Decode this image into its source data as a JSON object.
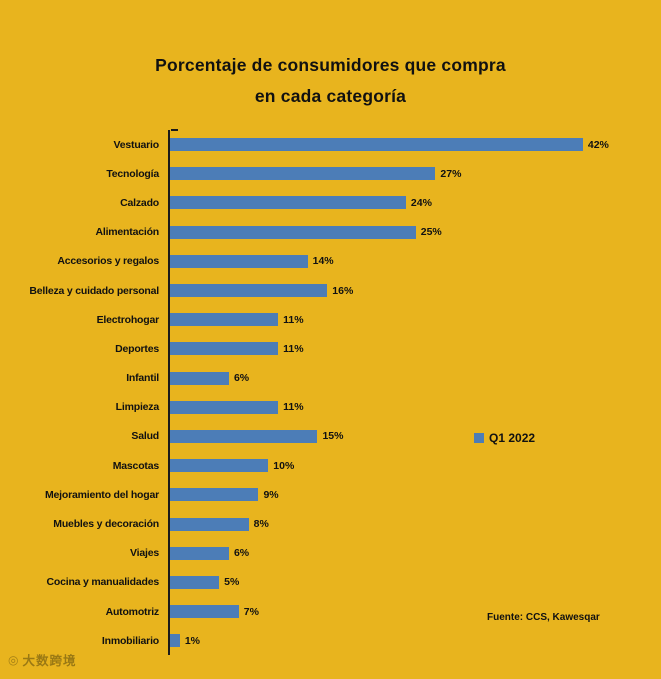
{
  "page": {
    "background_color": "#E8B41E"
  },
  "chart_data": {
    "type": "bar",
    "orientation": "horizontal",
    "title": "Porcentaje de consumidores que compra en cada categoría",
    "title_lines": {
      "line1": "Porcentaje de consumidores que compra",
      "line2": "en cada categoría"
    },
    "categories": [
      "Vestuario",
      "Tecnología",
      "Calzado",
      "Alimentación",
      "Accesorios y regalos",
      "Belleza y cuidado personal",
      "Electrohogar",
      "Deportes",
      "Infantil",
      "Limpieza",
      "Salud",
      "Mascotas",
      "Mejoramiento del hogar",
      "Muebles y decoración",
      "Viajes",
      "Cocina y manualidades",
      "Automotriz",
      "Inmobiliario"
    ],
    "values": [
      42,
      27,
      24,
      25,
      14,
      16,
      11,
      11,
      6,
      11,
      15,
      10,
      9,
      8,
      6,
      5,
      7,
      1
    ],
    "value_labels": [
      "42%",
      "27%",
      "24%",
      "25%",
      "14%",
      "16%",
      "11%",
      "11%",
      "6%",
      "11%",
      "15%",
      "10%",
      "9%",
      "8%",
      "6%",
      "5%",
      "7%",
      "1%"
    ],
    "bar_color": "#4C7DB7",
    "xlim": [
      0,
      45
    ],
    "grid": false,
    "legend": {
      "label": "Q1 2022",
      "position": "right-middle",
      "swatch_color": "#4C7DB7"
    },
    "source": "Fuente: CCS, Kawesqar"
  },
  "watermark": {
    "icon": "logo-100",
    "text": "大数跨境"
  }
}
